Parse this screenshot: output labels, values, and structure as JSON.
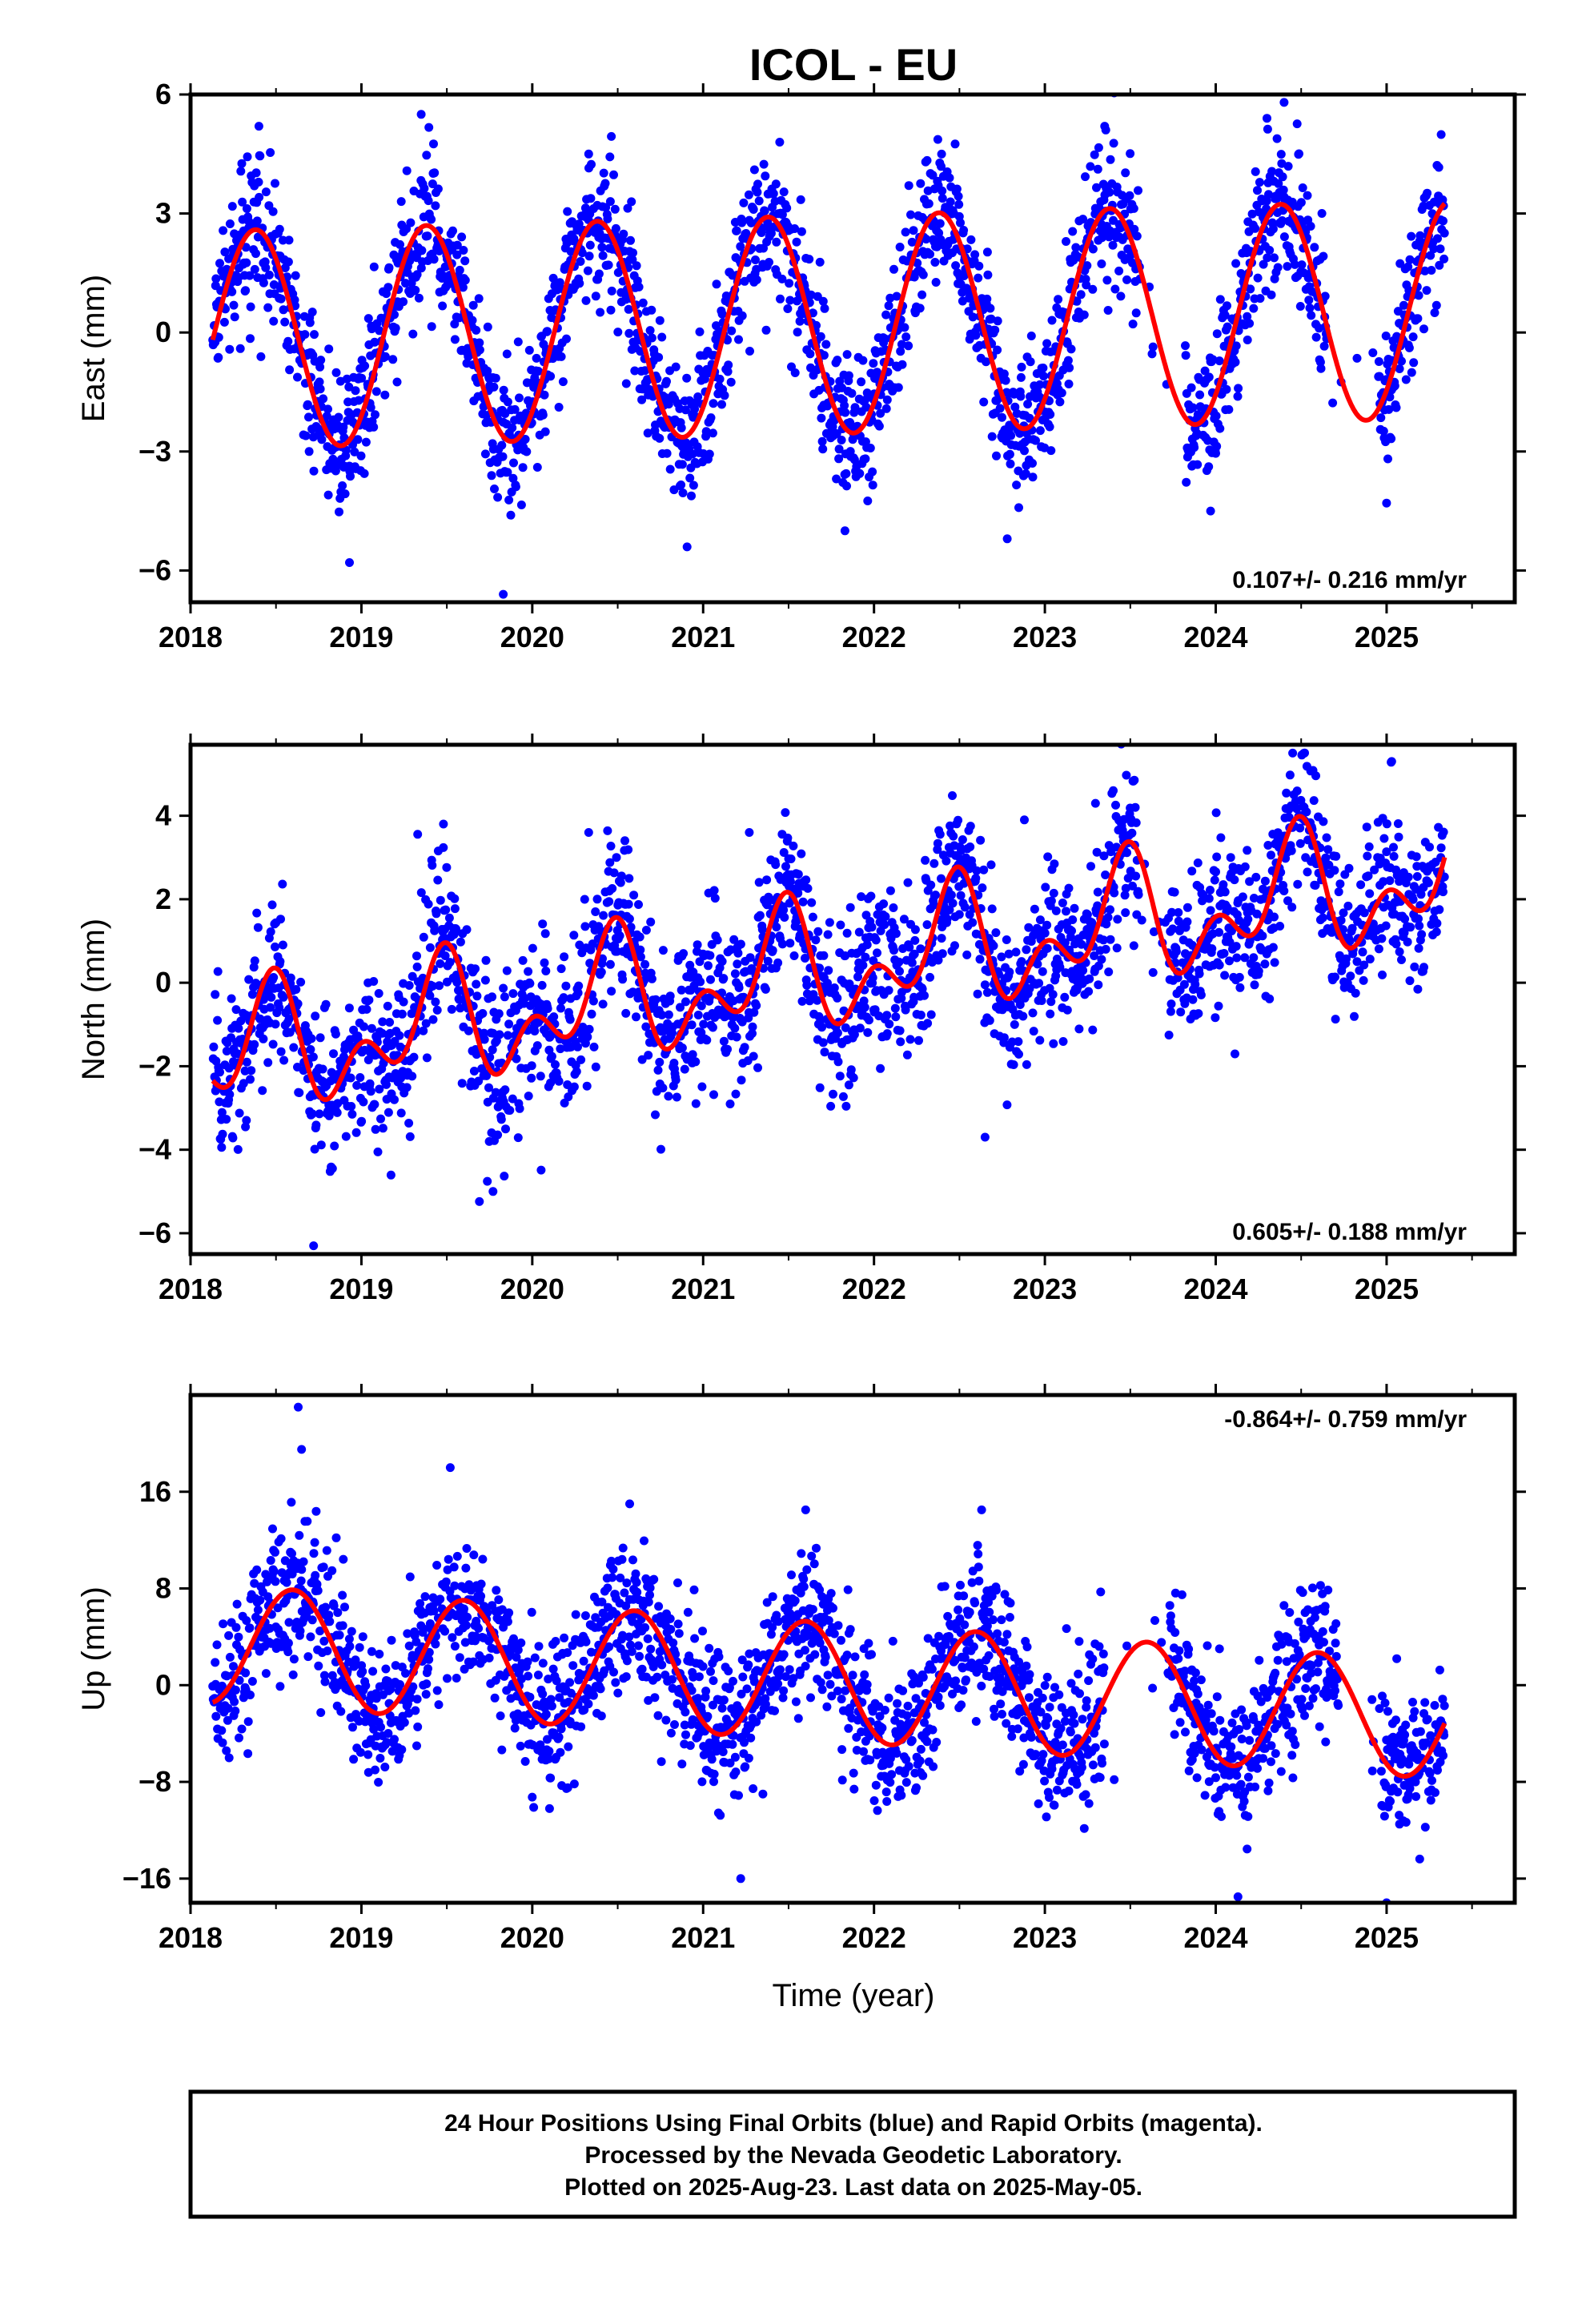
{
  "title": "ICOL - EU",
  "x_axis_title": "Time (year)",
  "footer": {
    "line1": "24 Hour Positions Using Final Orbits (blue) and Rapid Orbits (magenta).",
    "line2": "Processed by the Nevada Geodetic Laboratory.",
    "line3": "Plotted on 2025-Aug-23. Last data on 2025-May-05."
  },
  "colors": {
    "data_points": "#0000ff",
    "model_curve": "#ff0000",
    "frame": "#000000"
  },
  "chart_data": [
    {
      "type": "scatter",
      "name": "east",
      "ylabel": "East (mm)",
      "xlim": [
        2018.0,
        2025.75
      ],
      "ylim": [
        -6.8,
        6.0
      ],
      "x_ticks": [
        2018,
        2019,
        2020,
        2021,
        2022,
        2023,
        2024,
        2025
      ],
      "y_ticks": [
        -6,
        -3,
        0,
        3,
        6
      ],
      "y_tick_labels": [
        "−6",
        "−3",
        "0",
        "3",
        "6"
      ],
      "rate_label": "0.107+/- 0.216 mm/yr",
      "rate_label_position": "bottom-right",
      "data_start": 2018.13,
      "data_end": 2025.34,
      "model": {
        "offset": -0.2,
        "trend": 0.107,
        "annual_amplitude": 2.75,
        "annual_peak": 0.38,
        "semiannual_amplitude": 0.0,
        "semiannual_peak": 0.0
      },
      "noise_sd": 0.9,
      "gaps": [
        [
          2023.55,
          2023.82
        ],
        [
          2024.65,
          2024.95
        ]
      ],
      "points_sample": [
        {
          "x": 2018.4,
          "y": 5.2
        },
        {
          "x": 2018.93,
          "y": -5.8
        },
        {
          "x": 2019.35,
          "y": 5.5
        },
        {
          "x": 2019.83,
          "y": -6.6
        },
        {
          "x": 2020.33,
          "y": 4.5
        },
        {
          "x": 2021.4,
          "y": 3.5
        },
        {
          "x": 2021.83,
          "y": -5.0
        },
        {
          "x": 2022.78,
          "y": -5.2
        },
        {
          "x": 2023.35,
          "y": 5.2
        },
        {
          "x": 2023.97,
          "y": -4.5
        },
        {
          "x": 2024.3,
          "y": 5.4
        },
        {
          "x": 2024.4,
          "y": 5.8
        },
        {
          "x": 2025.0,
          "y": -4.3
        }
      ]
    },
    {
      "type": "scatter",
      "name": "north",
      "ylabel": "North (mm)",
      "xlim": [
        2018.0,
        2025.75
      ],
      "ylim": [
        -6.5,
        5.7
      ],
      "x_ticks": [
        2018,
        2019,
        2020,
        2021,
        2022,
        2023,
        2024,
        2025
      ],
      "y_ticks": [
        -6,
        -4,
        -2,
        0,
        2,
        4
      ],
      "y_tick_labels": [
        "−6",
        "−4",
        "−2",
        "0",
        "2",
        "4"
      ],
      "rate_label": "0.605+/- 0.188 mm/yr",
      "rate_label_position": "bottom-right",
      "data_start": 2018.13,
      "data_end": 2025.34,
      "model": {
        "offset": -1.9,
        "trend": 0.605,
        "annual_amplitude": 1.1,
        "annual_peak": 0.45,
        "semiannual_amplitude": 0.9,
        "semiannual_peak": 0.0
      },
      "noise_sd": 0.95,
      "gaps": [
        [
          2023.55,
          2023.72
        ]
      ],
      "points_sample": [
        {
          "x": 2018.72,
          "y": -6.3
        },
        {
          "x": 2019.48,
          "y": 3.8
        },
        {
          "x": 2019.77,
          "y": -5.0
        },
        {
          "x": 2020.33,
          "y": 3.6
        },
        {
          "x": 2021.27,
          "y": 3.6
        },
        {
          "x": 2022.65,
          "y": -3.7
        },
        {
          "x": 2022.88,
          "y": 3.9
        },
        {
          "x": 2023.4,
          "y": 4.6
        },
        {
          "x": 2024.45,
          "y": 5.5
        },
        {
          "x": 2025.03,
          "y": 5.3
        }
      ]
    },
    {
      "type": "scatter",
      "name": "up",
      "ylabel": "Up (mm)",
      "xlim": [
        2018.0,
        2025.75
      ],
      "ylim": [
        -18.0,
        24.0
      ],
      "x_ticks": [
        2018,
        2019,
        2020,
        2021,
        2022,
        2023,
        2024,
        2025
      ],
      "y_ticks": [
        -16,
        -8,
        0,
        8,
        16
      ],
      "y_tick_labels": [
        "−16",
        "−8",
        "0",
        "8",
        "16"
      ],
      "rate_label": "-0.864+/- 0.759 mm/yr",
      "rate_label_position": "top-right",
      "data_start": 2018.13,
      "data_end": 2025.34,
      "model": {
        "offset": 3.5,
        "trend": -0.864,
        "annual_amplitude": 4.9,
        "annual_peak": 0.6,
        "semiannual_amplitude": 0.0,
        "semiannual_peak": 0.0
      },
      "noise_sd": 3.1,
      "gaps": [
        [
          2023.35,
          2023.72
        ],
        [
          2024.72,
          2024.97
        ]
      ],
      "points_sample": [
        {
          "x": 2018.63,
          "y": 23.0
        },
        {
          "x": 2018.65,
          "y": 19.5
        },
        {
          "x": 2019.52,
          "y": 18.0
        },
        {
          "x": 2020.57,
          "y": 15.0
        },
        {
          "x": 2021.6,
          "y": 14.5
        },
        {
          "x": 2021.22,
          "y": -16.0
        },
        {
          "x": 2022.63,
          "y": 14.5
        },
        {
          "x": 2024.13,
          "y": -17.5
        },
        {
          "x": 2025.0,
          "y": -18.0
        }
      ]
    }
  ]
}
